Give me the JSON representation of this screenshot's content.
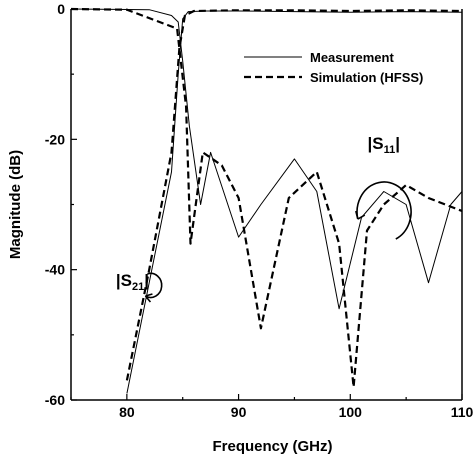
{
  "chart_data": {
    "type": "line",
    "title": "",
    "xlabel": "Frequency (GHz)",
    "ylabel": "Magnitude (dB)",
    "xlim": [
      75,
      110
    ],
    "ylim": [
      -60,
      0
    ],
    "x_ticks": [
      "80",
      "90",
      "100",
      "110"
    ],
    "y_ticks": [
      "0",
      "-20",
      "-40",
      "-60"
    ],
    "legend": {
      "placement": "top-right",
      "entries": [
        {
          "label": "Measurement",
          "style": "solid"
        },
        {
          "label": "Simulation (HFSS)",
          "style": "dashed"
        }
      ]
    },
    "annotations": [
      {
        "base": "|S",
        "sub": "11",
        "tail": "|",
        "x": 103,
        "y": -21.5
      },
      {
        "base": "|S",
        "sub": "21",
        "tail": "|",
        "x": 80.5,
        "y": -42.5
      }
    ],
    "series": [
      {
        "name": "Measurement",
        "style": "solid",
        "curves": [
          {
            "role": "S21",
            "x": [
              75,
              80,
              82,
              84,
              84.6,
              85,
              85.5,
              87,
              90,
              95,
              100,
              105,
              110
            ],
            "y": [
              null,
              -59,
              -42,
              -25,
              -10,
              -1.5,
              -0.4,
              -0.3,
              -0.3,
              -0.4,
              -0.5,
              -0.4,
              -0.5
            ]
          },
          {
            "role": "S11",
            "x": [
              75,
              82,
              84,
              84.6,
              85,
              85.6,
              86.6,
              87.5,
              90,
              92,
              95,
              97,
              99,
              101,
              103,
              105,
              107,
              109,
              110
            ],
            "y": [
              0,
              -0.1,
              -1,
              -2,
              -8,
              -18,
              -30,
              -22,
              -35,
              -30,
              -23,
              -28,
              -46,
              -32,
              -28,
              -30,
              -42,
              -30,
              -28
            ]
          }
        ]
      },
      {
        "name": "Simulation (HFSS)",
        "style": "dashed",
        "curves": [
          {
            "role": "S21",
            "x": [
              75,
              80,
              82,
              84,
              84.7,
              85.2,
              86,
              90,
              95,
              100,
              105,
              110
            ],
            "y": [
              null,
              -57,
              -40,
              -22,
              -6,
              -1,
              -0.3,
              -0.2,
              -0.2,
              -0.3,
              -0.2,
              -0.3
            ]
          },
          {
            "role": "S11",
            "x": [
              75,
              80,
              84.5,
              85.3,
              85.7,
              86.8,
              88.5,
              90,
              92,
              94.5,
              97,
              99,
              100.3,
              101.5,
              103,
              105,
              107,
              110
            ],
            "y": [
              0,
              -0.1,
              -3,
              -15,
              -36,
              -22,
              -24,
              -29,
              -49,
              -29,
              -25,
              -36,
              -58,
              -34,
              -30,
              -27,
              -29,
              -31
            ]
          }
        ]
      }
    ],
    "grid": false
  }
}
